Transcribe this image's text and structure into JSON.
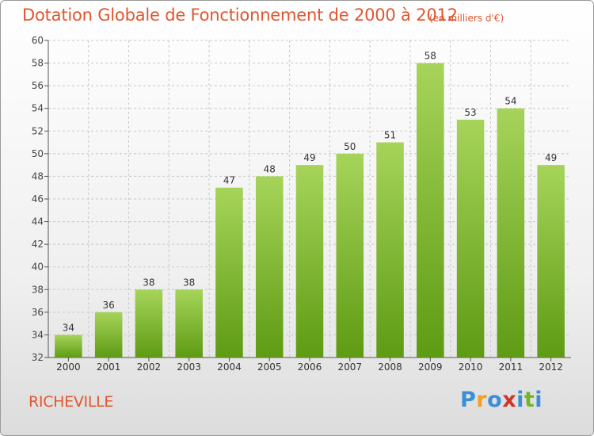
{
  "title": "Dotation Globale de Fonctionnement de 2000 à 2012",
  "units": "(en milliers d'€)",
  "place": "RICHEVILLE",
  "logo": {
    "text": "Proxiti",
    "letters": [
      "P",
      "r",
      "o",
      "x",
      "i",
      "t",
      "i"
    ],
    "colors": [
      "#3b8fd8",
      "#f0a022",
      "#3b8fd8",
      "#d0342c",
      "#3b8fd8",
      "#72b52b",
      "#3b8fd8"
    ]
  },
  "colors": {
    "accent": "#e0562e",
    "bar_top": "#a6d45a",
    "bar_bottom": "#5e9b13",
    "grid": "#c8c8c8"
  },
  "chart_data": {
    "type": "bar",
    "categories": [
      "2000",
      "2001",
      "2002",
      "2003",
      "2004",
      "2005",
      "2006",
      "2007",
      "2008",
      "2009",
      "2010",
      "2011",
      "2012"
    ],
    "values": [
      34,
      36,
      38,
      38,
      47,
      48,
      49,
      50,
      51,
      58,
      53,
      54,
      49
    ],
    "yticks": [
      32,
      34,
      36,
      38,
      40,
      42,
      44,
      46,
      48,
      50,
      52,
      54,
      56,
      58,
      60
    ],
    "ylim": [
      32,
      60
    ],
    "grid": true
  }
}
